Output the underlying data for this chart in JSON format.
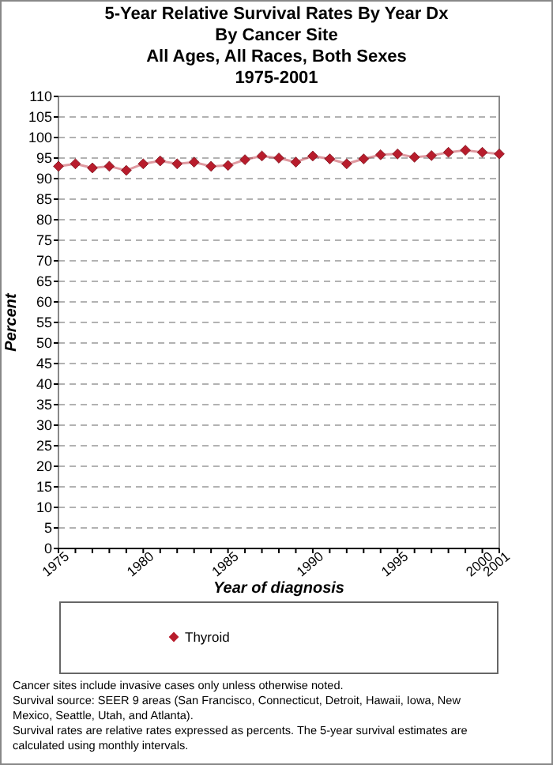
{
  "chart_data": {
    "type": "line",
    "title": "5-Year Relative Survival Rates By Year Dx\nBy Cancer Site\nAll Ages, All Races, Both Sexes\n1975-2001",
    "xlabel": "Year of diagnosis",
    "ylabel": "Percent",
    "x": [
      1975,
      1976,
      1977,
      1978,
      1979,
      1980,
      1981,
      1982,
      1983,
      1984,
      1985,
      1986,
      1987,
      1988,
      1989,
      1990,
      1991,
      1992,
      1993,
      1994,
      1995,
      1996,
      1997,
      1998,
      1999,
      2000,
      2001
    ],
    "series": [
      {
        "name": "Thyroid",
        "color": "#b81c2c",
        "values": [
          93.0,
          93.6,
          92.6,
          93.0,
          92.0,
          93.6,
          94.3,
          93.6,
          94.0,
          93.0,
          93.2,
          94.6,
          95.5,
          95.0,
          94.0,
          95.5,
          94.8,
          93.6,
          94.8,
          95.8,
          96.0,
          95.2,
          95.6,
          96.4,
          96.9,
          96.4,
          96.0
        ]
      }
    ],
    "xlim": [
      1975,
      2001
    ],
    "xticks": [
      1975,
      {
        "value": 1976,
        "label": null
      },
      {
        "value": 1977,
        "label": null
      },
      {
        "value": 1978,
        "label": null
      },
      {
        "value": 1979,
        "label": null
      },
      1980,
      {
        "value": 1981,
        "label": null
      },
      {
        "value": 1982,
        "label": null
      },
      {
        "value": 1983,
        "label": null
      },
      {
        "value": 1984,
        "label": null
      },
      1985,
      {
        "value": 1986,
        "label": null
      },
      {
        "value": 1987,
        "label": null
      },
      {
        "value": 1988,
        "label": null
      },
      {
        "value": 1989,
        "label": null
      },
      1990,
      {
        "value": 1991,
        "label": null
      },
      {
        "value": 1992,
        "label": null
      },
      {
        "value": 1993,
        "label": null
      },
      {
        "value": 1994,
        "label": null
      },
      1995,
      {
        "value": 1996,
        "label": null
      },
      {
        "value": 1997,
        "label": null
      },
      {
        "value": 1998,
        "label": null
      },
      {
        "value": 1999,
        "label": null
      },
      2000,
      2001
    ],
    "ylim": [
      0,
      110
    ],
    "yticks": [
      0,
      5,
      10,
      15,
      20,
      25,
      30,
      35,
      40,
      45,
      50,
      55,
      60,
      65,
      70,
      75,
      80,
      85,
      90,
      95,
      100,
      105,
      110
    ],
    "grid": "y",
    "legend": "bottom",
    "marker": "diamond",
    "line_style": "solid",
    "annotations": [
      "Cancer sites include invasive cases only unless otherwise noted.",
      "Survival source: SEER 9 areas (San Francisco, Connecticut, Detroit, Hawaii, Iowa, New Mexico, Seattle, Utah, and Atlanta).",
      "Survival rates are relative rates expressed as percents. The 5-year survival estimates are calculated using monthly intervals."
    ]
  }
}
